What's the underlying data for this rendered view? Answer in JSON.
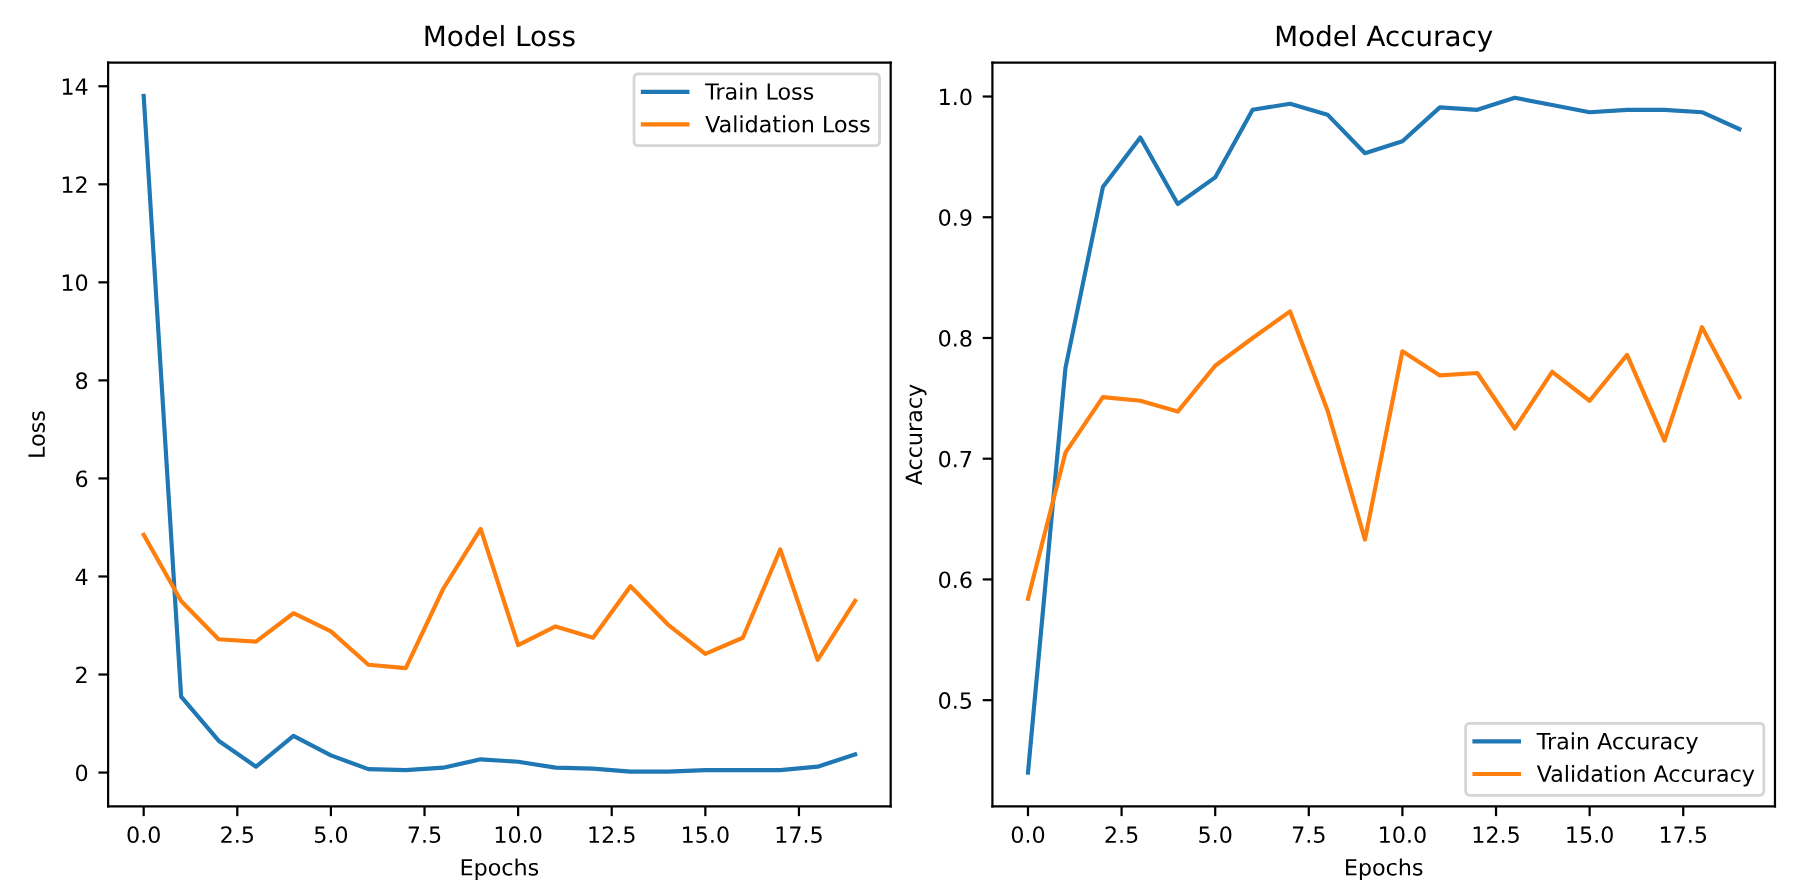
{
  "chart_data": [
    {
      "type": "line",
      "title": "Model Loss",
      "xlabel": "Epochs",
      "ylabel": "Loss",
      "x": [
        0,
        1,
        2,
        3,
        4,
        5,
        6,
        7,
        8,
        9,
        10,
        11,
        12,
        13,
        14,
        15,
        16,
        17,
        18,
        19
      ],
      "series": [
        {
          "name": "Train Loss",
          "color": "#1f77b4",
          "values": [
            13.8,
            1.55,
            0.65,
            0.12,
            0.75,
            0.35,
            0.07,
            0.05,
            0.1,
            0.27,
            0.22,
            0.1,
            0.08,
            0.02,
            0.02,
            0.05,
            0.05,
            0.05,
            0.12,
            0.37
          ]
        },
        {
          "name": "Validation Loss",
          "color": "#ff7f0e",
          "values": [
            4.85,
            3.5,
            2.72,
            2.67,
            3.25,
            2.88,
            2.2,
            2.13,
            3.75,
            4.97,
            2.6,
            2.98,
            2.75,
            3.8,
            3.02,
            2.42,
            2.75,
            4.55,
            2.3,
            3.5
          ]
        }
      ],
      "xlim": [
        -0.95,
        19.95
      ],
      "ylim": [
        -0.69,
        14.48
      ],
      "xticks": [
        {
          "value": 0,
          "label": "0.0"
        },
        {
          "value": 2.5,
          "label": "2.5"
        },
        {
          "value": 5,
          "label": "5.0"
        },
        {
          "value": 7.5,
          "label": "7.5"
        },
        {
          "value": 10,
          "label": "10.0"
        },
        {
          "value": 12.5,
          "label": "12.5"
        },
        {
          "value": 15,
          "label": "15.0"
        },
        {
          "value": 17.5,
          "label": "17.5"
        }
      ],
      "yticks": [
        0,
        2,
        4,
        6,
        8,
        10,
        12,
        14
      ],
      "legend": "top right",
      "grid": false,
      "marker": "none",
      "line_style": "solid"
    },
    {
      "type": "line",
      "title": "Model Accuracy",
      "xlabel": "Epochs",
      "ylabel": "Accuracy",
      "x": [
        0,
        1,
        2,
        3,
        4,
        5,
        6,
        7,
        8,
        9,
        10,
        11,
        12,
        13,
        14,
        15,
        16,
        17,
        18,
        19
      ],
      "series": [
        {
          "name": "Train Accuracy",
          "color": "#1f77b4",
          "values": [
            0.44,
            0.775,
            0.925,
            0.966,
            0.911,
            0.933,
            0.989,
            0.994,
            0.985,
            0.953,
            0.963,
            0.991,
            0.989,
            0.999,
            0.993,
            0.987,
            0.989,
            0.989,
            0.987,
            0.973
          ]
        },
        {
          "name": "Validation Accuracy",
          "color": "#ff7f0e",
          "values": [
            0.584,
            0.705,
            0.751,
            0.748,
            0.739,
            0.777,
            0.8,
            0.822,
            0.74,
            0.633,
            0.789,
            0.769,
            0.771,
            0.725,
            0.772,
            0.748,
            0.786,
            0.715,
            0.809,
            0.751
          ]
        }
      ],
      "xlim": [
        -0.95,
        19.95
      ],
      "ylim": [
        0.412,
        1.028
      ],
      "xticks": [
        {
          "value": 0,
          "label": "0.0"
        },
        {
          "value": 2.5,
          "label": "2.5"
        },
        {
          "value": 5,
          "label": "5.0"
        },
        {
          "value": 7.5,
          "label": "7.5"
        },
        {
          "value": 10,
          "label": "10.0"
        },
        {
          "value": 12.5,
          "label": "12.5"
        },
        {
          "value": 15,
          "label": "15.0"
        },
        {
          "value": 17.5,
          "label": "17.5"
        }
      ],
      "yticks": [
        {
          "value": 0.5,
          "label": "0.5"
        },
        {
          "value": 0.6,
          "label": "0.6"
        },
        {
          "value": 0.7,
          "label": "0.7"
        },
        {
          "value": 0.8,
          "label": "0.8"
        },
        {
          "value": 0.9,
          "label": "0.9"
        },
        {
          "value": 1.0,
          "label": "1.0"
        }
      ],
      "legend": "bottom right",
      "grid": false,
      "marker": "none",
      "line_style": "solid"
    }
  ]
}
